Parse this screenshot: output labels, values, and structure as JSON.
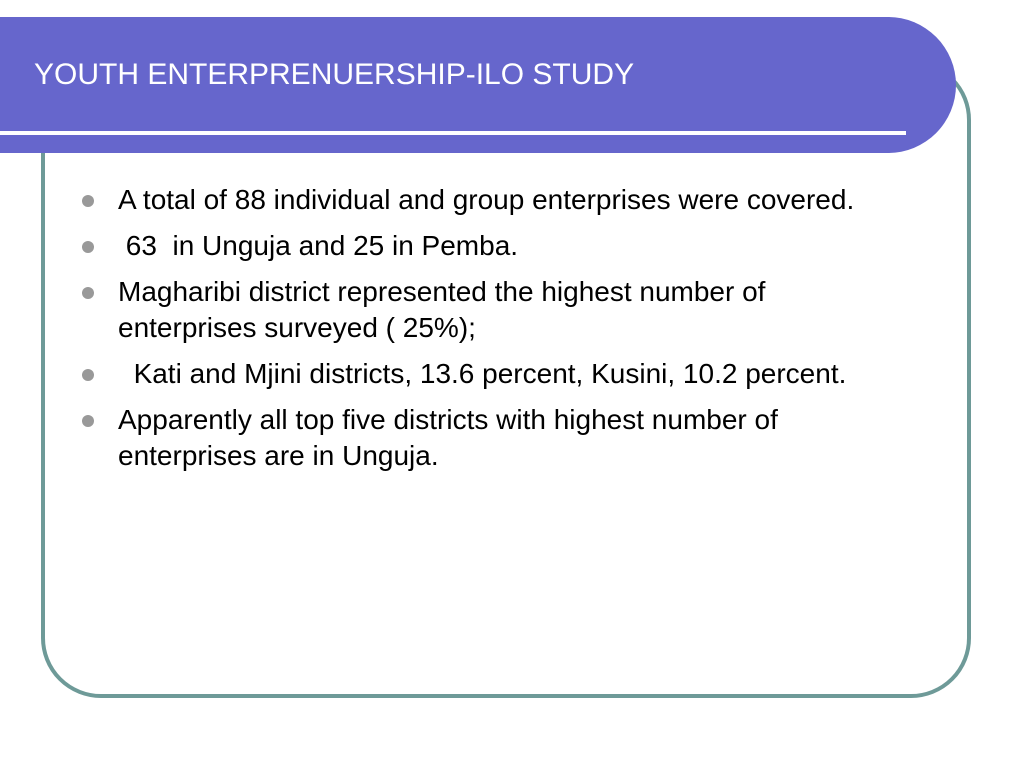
{
  "header": {
    "title": "YOUTH ENTERPRENUERSHIP-ILO STUDY"
  },
  "bullets": [
    "A total of 88 individual and group enterprises were covered.",
    " 63  in Unguja and 25 in Pemba.",
    "Magharibi district represented the highest number of enterprises surveyed ( 25%);",
    "  Kati and Mjini districts, 13.6 percent, Kusini, 10.2 percent.",
    "Apparently all top five districts with highest number of enterprises are in Unguja."
  ]
}
